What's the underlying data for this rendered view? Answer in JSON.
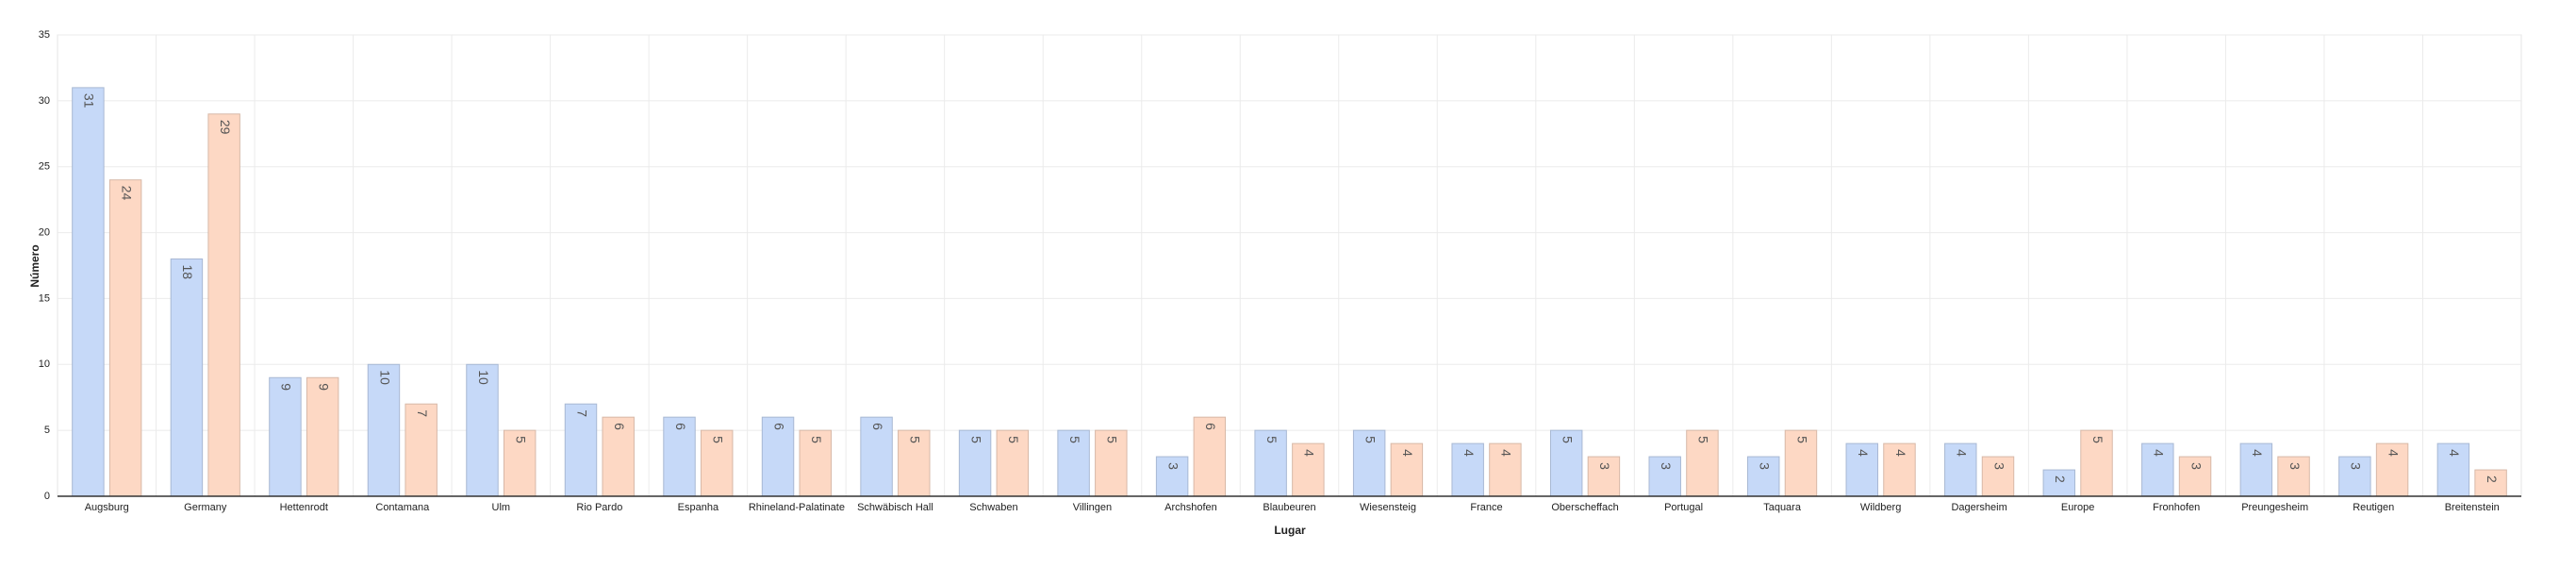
{
  "chart_data": {
    "type": "bar",
    "x_label": "Lugar",
    "y_label": "Número",
    "categories": [
      "Augsburg",
      "Germany",
      "Hettenrodt",
      "Contamana",
      "Ulm",
      "Rio Pardo",
      "Espanha",
      "Rhineland-Palatinate",
      "Schwäbisch Hall",
      "Schwaben",
      "Villingen",
      "Archshofen",
      "Blaubeuren",
      "Wiesensteig",
      "France",
      "Oberscheffach",
      "Portugal",
      "Taquara",
      "Wildberg",
      "Dagersheim",
      "Europe",
      "Fronhofen",
      "Preungesheim",
      "Reutigen",
      "Breitenstein"
    ],
    "series": [
      {
        "color": "#c6d9f8",
        "values": [
          31,
          18,
          9,
          10,
          10,
          7,
          6,
          6,
          6,
          5,
          5,
          3,
          5,
          5,
          4,
          5,
          3,
          3,
          4,
          4,
          2,
          4,
          4,
          3,
          4
        ]
      },
      {
        "color": "#fdd8c4",
        "values": [
          24,
          29,
          9,
          7,
          5,
          6,
          5,
          5,
          5,
          5,
          5,
          6,
          4,
          4,
          4,
          3,
          5,
          5,
          4,
          3,
          5,
          3,
          3,
          4,
          2
        ]
      }
    ],
    "ylim": [
      0,
      35
    ],
    "yticks": [
      0,
      5,
      10,
      15,
      20,
      25,
      30,
      35
    ],
    "grid": true
  }
}
